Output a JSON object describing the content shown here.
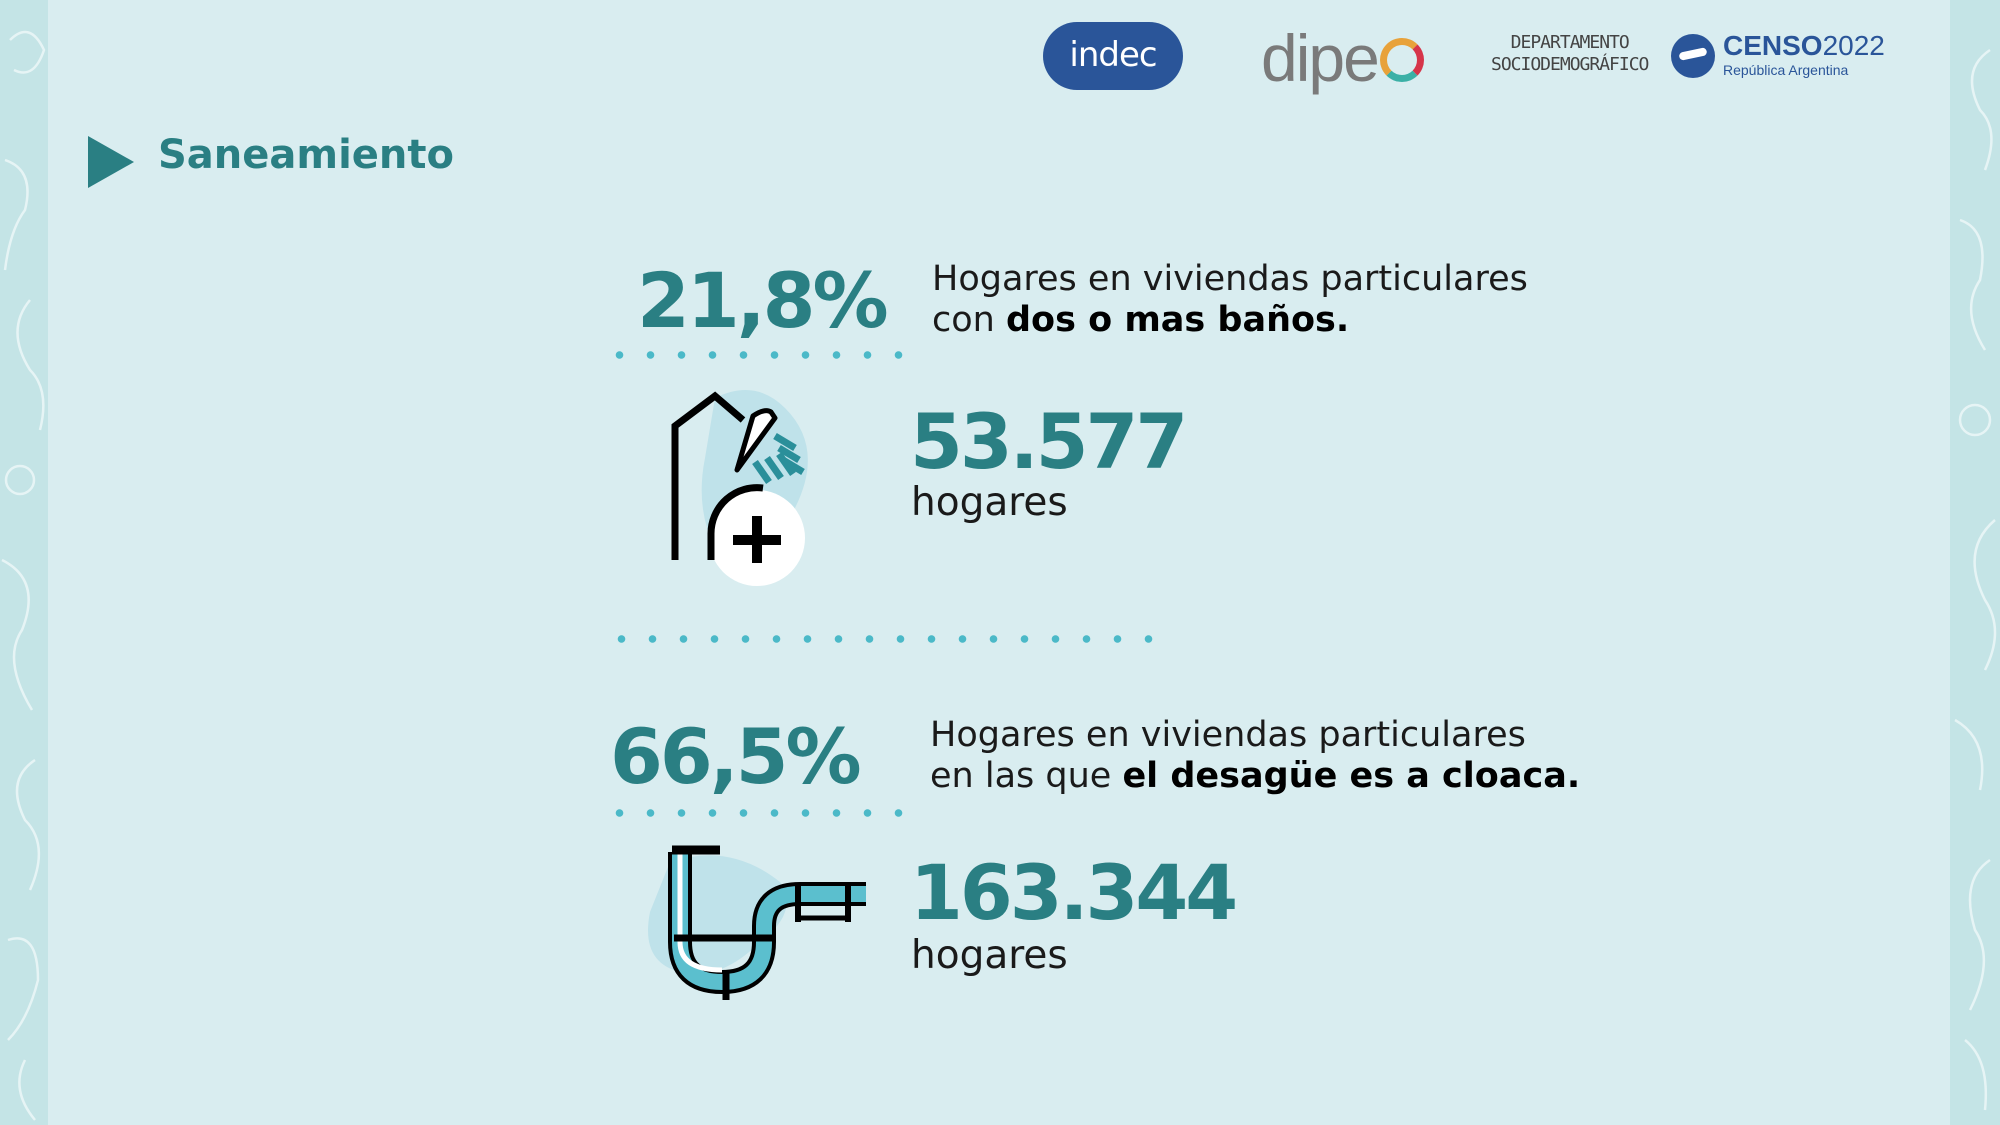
{
  "header": {
    "title": "Saneamiento",
    "logos": {
      "indec": "indec",
      "dipec": "dipe",
      "depto_line1": "DEPARTAMENTO",
      "depto_line2": "SOCIODEMOGRÁFICO",
      "censo_bold": "CENSO",
      "censo_year": "2022",
      "censo_sub": "República Argentina"
    }
  },
  "stats": [
    {
      "percent": "21,8%",
      "desc_line1": "Hogares en viviendas particulares",
      "desc_line2_plain": "con ",
      "desc_line2_bold": "dos o mas baños.",
      "count": "53.577",
      "unit": "hogares",
      "icon": "shower-plus-icon"
    },
    {
      "percent": "66,5%",
      "desc_line1": "Hogares en viviendas particulares",
      "desc_line2_plain": "en las que ",
      "desc_line2_bold": "el desagüe es a cloaca.",
      "count": "163.344",
      "unit": "hogares",
      "icon": "drain-pipe-icon"
    }
  ],
  "colors": {
    "background": "#d9edf0",
    "accent": "#2a7f83",
    "dots": "#4bb9c8",
    "pipe": "#5bbfce"
  }
}
